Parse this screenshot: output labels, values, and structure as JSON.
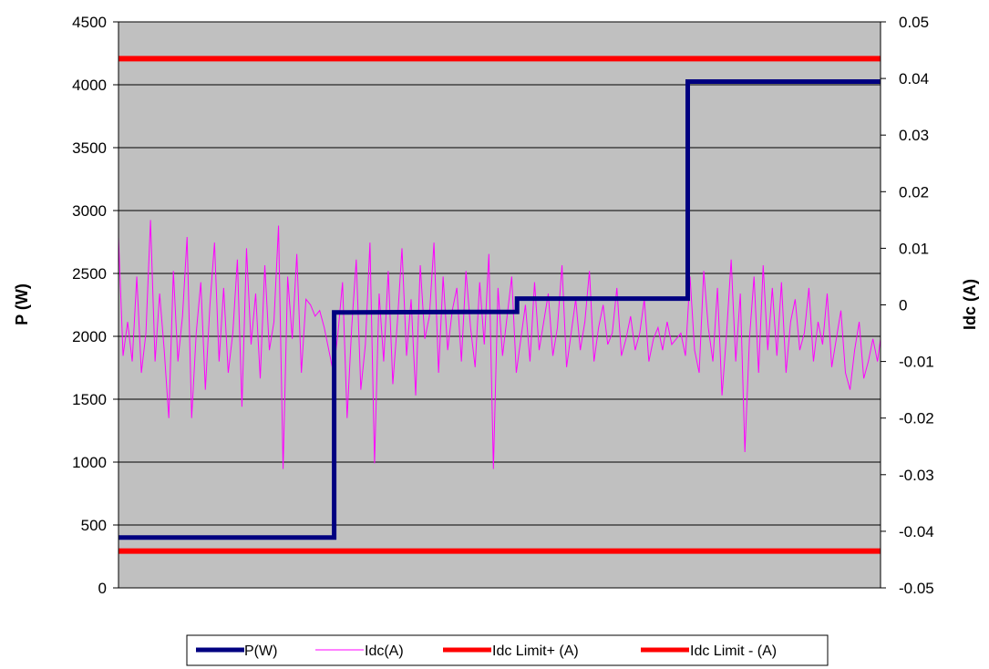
{
  "chart_data": {
    "type": "line",
    "title": "",
    "xlabel": "",
    "ylabel": "P (W)",
    "y2label": "Idc (A)",
    "ylim": [
      0,
      4500
    ],
    "y2lim": [
      -0.05,
      0.05
    ],
    "yticks": [
      "0",
      "500",
      "1000",
      "1500",
      "2000",
      "2500",
      "3000",
      "3500",
      "4000",
      "4500"
    ],
    "y2ticks": [
      "-0.05",
      "-0.04",
      "-0.03",
      "-0.02",
      "-0.01",
      "0",
      "0.01",
      "0.02",
      "0.03",
      "0.04",
      "0.05"
    ],
    "x_range": [
      0,
      1000
    ],
    "grid": "horizontal",
    "legend_position": "bottom",
    "plot_background": "#c0c0c0",
    "series": [
      {
        "name": "P(W)",
        "axis": "left",
        "color": "#000080",
        "points": [
          [
            0,
            400
          ],
          [
            283,
            400
          ],
          [
            283,
            2190
          ],
          [
            523,
            2195
          ],
          [
            523,
            2300
          ],
          [
            747,
            2300
          ],
          [
            747,
            4025
          ],
          [
            1000,
            4025
          ]
        ]
      },
      {
        "name": "Idc(A)",
        "axis": "right",
        "color": "#ff00ff",
        "points": [
          [
            0,
            0.012
          ],
          [
            6,
            -0.009
          ],
          [
            12,
            -0.003
          ],
          [
            18,
            -0.01
          ],
          [
            24,
            0.005
          ],
          [
            30,
            -0.012
          ],
          [
            36,
            -0.005
          ],
          [
            42,
            0.015
          ],
          [
            48,
            -0.01
          ],
          [
            54,
            0.002
          ],
          [
            60,
            -0.008
          ],
          [
            66,
            -0.02
          ],
          [
            72,
            0.006
          ],
          [
            78,
            -0.01
          ],
          [
            84,
            -0.002
          ],
          [
            90,
            0.012
          ],
          [
            96,
            -0.02
          ],
          [
            102,
            -0.005
          ],
          [
            108,
            0.004
          ],
          [
            114,
            -0.015
          ],
          [
            120,
            0.0
          ],
          [
            126,
            0.011
          ],
          [
            132,
            -0.01
          ],
          [
            138,
            0.003
          ],
          [
            144,
            -0.012
          ],
          [
            150,
            -0.005
          ],
          [
            156,
            0.008
          ],
          [
            162,
            -0.018
          ],
          [
            168,
            0.01
          ],
          [
            174,
            -0.007
          ],
          [
            180,
            0.002
          ],
          [
            186,
            -0.013
          ],
          [
            192,
            0.007
          ],
          [
            198,
            -0.008
          ],
          [
            204,
            -0.003
          ],
          [
            210,
            0.014
          ],
          [
            216,
            -0.029
          ],
          [
            222,
            0.005
          ],
          [
            228,
            -0.006
          ],
          [
            234,
            0.009
          ],
          [
            240,
            -0.012
          ],
          [
            246,
            0.001
          ],
          [
            252,
            0.0
          ],
          [
            258,
            -0.002
          ],
          [
            264,
            -0.001
          ],
          [
            270,
            -0.004
          ],
          [
            276,
            -0.008
          ],
          [
            282,
            -0.012
          ],
          [
            288,
            -0.005
          ],
          [
            294,
            0.004
          ],
          [
            300,
            -0.02
          ],
          [
            306,
            -0.004
          ],
          [
            312,
            0.008
          ],
          [
            318,
            -0.015
          ],
          [
            324,
            -0.007
          ],
          [
            330,
            0.011
          ],
          [
            336,
            -0.028
          ],
          [
            342,
            0.002
          ],
          [
            348,
            -0.01
          ],
          [
            354,
            0.006
          ],
          [
            360,
            -0.014
          ],
          [
            366,
            -0.003
          ],
          [
            372,
            0.01
          ],
          [
            378,
            -0.009
          ],
          [
            384,
            0.001
          ],
          [
            390,
            -0.016
          ],
          [
            396,
            0.007
          ],
          [
            402,
            -0.006
          ],
          [
            408,
            -0.002
          ],
          [
            414,
            0.011
          ],
          [
            420,
            -0.012
          ],
          [
            426,
            0.005
          ],
          [
            432,
            -0.008
          ],
          [
            438,
            -0.001
          ],
          [
            444,
            0.003
          ],
          [
            450,
            -0.01
          ],
          [
            456,
            0.006
          ],
          [
            462,
            -0.004
          ],
          [
            468,
            -0.011
          ],
          [
            474,
            0.004
          ],
          [
            480,
            -0.007
          ],
          [
            486,
            0.009
          ],
          [
            492,
            -0.029
          ],
          [
            498,
            0.003
          ],
          [
            504,
            -0.009
          ],
          [
            510,
            -0.002
          ],
          [
            516,
            0.005
          ],
          [
            522,
            -0.012
          ],
          [
            528,
            -0.006
          ],
          [
            534,
            0.0
          ],
          [
            540,
            -0.01
          ],
          [
            546,
            0.004
          ],
          [
            552,
            -0.008
          ],
          [
            558,
            -0.003
          ],
          [
            564,
            0.002
          ],
          [
            570,
            -0.009
          ],
          [
            576,
            -0.004
          ],
          [
            582,
            0.007
          ],
          [
            588,
            -0.011
          ],
          [
            594,
            -0.005
          ],
          [
            600,
            0.001
          ],
          [
            606,
            -0.008
          ],
          [
            612,
            -0.003
          ],
          [
            618,
            0.006
          ],
          [
            624,
            -0.01
          ],
          [
            630,
            -0.004
          ],
          [
            636,
            0.0
          ],
          [
            642,
            -0.007
          ],
          [
            648,
            -0.005
          ],
          [
            654,
            0.003
          ],
          [
            660,
            -0.009
          ],
          [
            666,
            -0.006
          ],
          [
            672,
            -0.002
          ],
          [
            678,
            -0.008
          ],
          [
            684,
            -0.005
          ],
          [
            690,
            0.001
          ],
          [
            696,
            -0.01
          ],
          [
            702,
            -0.006
          ],
          [
            708,
            -0.004
          ],
          [
            714,
            -0.008
          ],
          [
            720,
            -0.003
          ],
          [
            726,
            -0.007
          ],
          [
            732,
            -0.006
          ],
          [
            738,
            -0.005
          ],
          [
            744,
            -0.009
          ],
          [
            750,
            0.005
          ],
          [
            756,
            -0.008
          ],
          [
            762,
            -0.012
          ],
          [
            768,
            0.006
          ],
          [
            774,
            -0.004
          ],
          [
            780,
            -0.01
          ],
          [
            786,
            0.003
          ],
          [
            792,
            -0.016
          ],
          [
            798,
            -0.005
          ],
          [
            804,
            0.008
          ],
          [
            810,
            -0.01
          ],
          [
            816,
            0.002
          ],
          [
            822,
            -0.026
          ],
          [
            828,
            -0.006
          ],
          [
            834,
            0.005
          ],
          [
            840,
            -0.012
          ],
          [
            846,
            0.007
          ],
          [
            852,
            -0.008
          ],
          [
            858,
            0.003
          ],
          [
            864,
            -0.009
          ],
          [
            870,
            0.004
          ],
          [
            876,
            -0.012
          ],
          [
            882,
            -0.003
          ],
          [
            888,
            0.001
          ],
          [
            894,
            -0.008
          ],
          [
            900,
            -0.005
          ],
          [
            906,
            0.003
          ],
          [
            912,
            -0.01
          ],
          [
            918,
            -0.003
          ],
          [
            924,
            -0.007
          ],
          [
            930,
            0.002
          ],
          [
            936,
            -0.011
          ],
          [
            942,
            -0.006
          ],
          [
            948,
            -0.001
          ],
          [
            954,
            -0.012
          ],
          [
            960,
            -0.015
          ],
          [
            966,
            -0.008
          ],
          [
            972,
            -0.003
          ],
          [
            978,
            -0.013
          ],
          [
            984,
            -0.01
          ],
          [
            990,
            -0.006
          ],
          [
            996,
            -0.01
          ],
          [
            1000,
            -0.006
          ]
        ]
      },
      {
        "name": "Idc Limit+ (A)",
        "axis": "right",
        "color": "#ff0000",
        "points": [
          [
            0,
            0.0435
          ],
          [
            1000,
            0.0435
          ]
        ]
      },
      {
        "name": "Idc Limit - (A)",
        "axis": "right",
        "color": "#ff0000",
        "points": [
          [
            0,
            -0.0435
          ],
          [
            1000,
            -0.0435
          ]
        ]
      }
    ]
  }
}
